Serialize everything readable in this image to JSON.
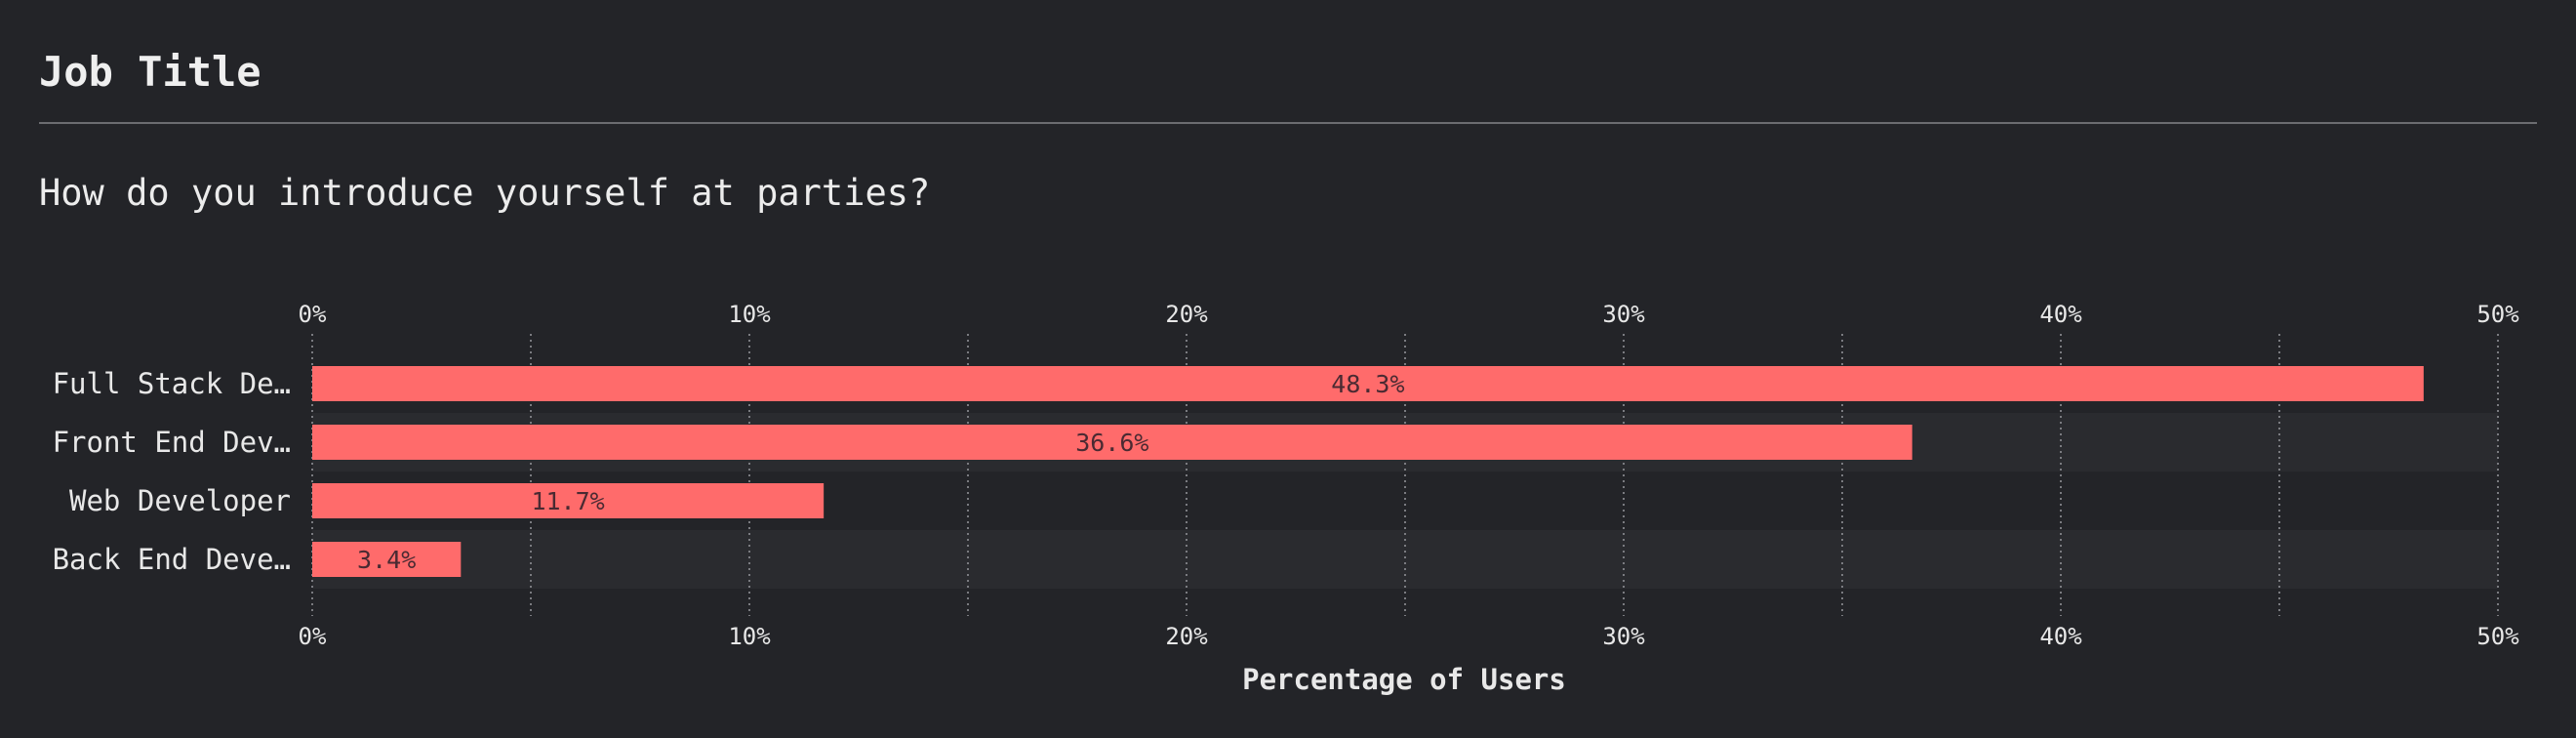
{
  "header": {
    "title": "Job Title",
    "question": "How do you introduce yourself at parties?"
  },
  "colors": {
    "background": "#232428",
    "bar": "#ff6b6b",
    "band": "#2a2b2f",
    "grid": "#7a7b80",
    "text": "#e8e8e8",
    "bar_label": "#4a2a32"
  },
  "chart_data": {
    "type": "bar",
    "orientation": "horizontal",
    "categories": [
      "Full Stack De…",
      "Front End Dev…",
      "Web Developer",
      "Back End Deve…"
    ],
    "values": [
      48.3,
      36.6,
      11.7,
      3.4
    ],
    "value_labels": [
      "48.3%",
      "36.6%",
      "11.7%",
      "3.4%"
    ],
    "x_ticks": [
      "0%",
      "10%",
      "20%",
      "30%",
      "40%",
      "50%"
    ],
    "xlim": [
      0,
      50
    ],
    "xlabel": "Percentage of Users",
    "grid": true,
    "ticks_top_and_bottom": true
  }
}
